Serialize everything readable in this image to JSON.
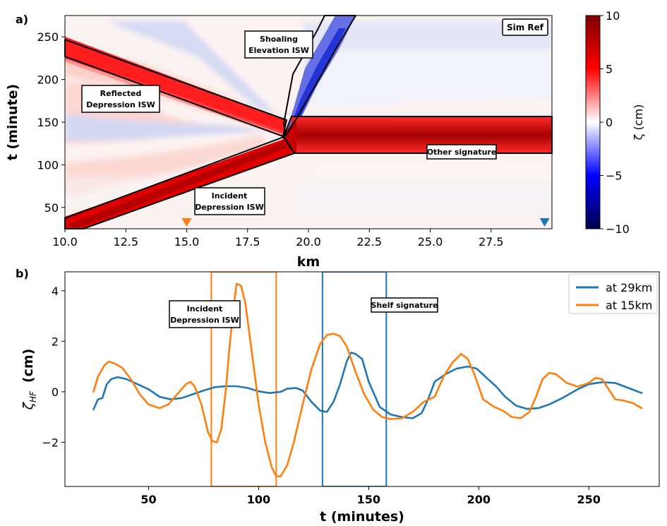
{
  "chart_data": [
    {
      "panel_label": "a)",
      "type": "heatmap",
      "xlabel": "km",
      "ylabel": "t (minute)",
      "xlim": [
        10.0,
        30.0
      ],
      "ylim": [
        25,
        275
      ],
      "x_ticks": [
        10.0,
        12.5,
        15.0,
        17.5,
        20.0,
        22.5,
        25.0,
        27.5
      ],
      "x_tick_labels": [
        "10.0",
        "12.5",
        "15.0",
        "17.5",
        "20.0",
        "22.5",
        "25.0",
        "27.5"
      ],
      "y_ticks": [
        50,
        100,
        150,
        200,
        250
      ],
      "y_tick_labels": [
        "50",
        "100",
        "150",
        "200",
        "250"
      ],
      "colorbar": {
        "label": "ζ (cm)",
        "range": [
          -10,
          10
        ],
        "ticks": [
          10,
          5,
          0,
          -5,
          -10
        ],
        "tick_labels": [
          "10",
          "5",
          "0",
          "−5",
          "−10"
        ],
        "colormap": "seismic",
        "colors": {
          "max": "#7f0000",
          "high": "#ff0000",
          "zero": "#ffffff",
          "low": "#0000ff",
          "min": "#00004c"
        }
      },
      "box_label": "Sim Ref",
      "markers": [
        {
          "x": 15.0,
          "color": "#ff7f0e",
          "shape": "triangle-down"
        },
        {
          "x": 29.7,
          "color": "#1f77b4",
          "shape": "triangle-down"
        }
      ],
      "regions": [
        {
          "label_lines": [
            "Incident",
            "Depression ISW"
          ],
          "polygon": [
            [
              10.0,
              40
            ],
            [
              10.0,
              25
            ],
            [
              10.8,
              25
            ],
            [
              19.3,
              114
            ],
            [
              19.1,
              132
            ]
          ]
        },
        {
          "label_lines": [
            "Reflected",
            "Depression ISW"
          ],
          "polygon": [
            [
              10.0,
              246
            ],
            [
              10.0,
              225
            ],
            [
              18.9,
              133
            ],
            [
              19.0,
              156
            ]
          ]
        },
        {
          "label_lines": [
            "Shoaling",
            "Elevation ISW"
          ],
          "polygon": [
            [
              19.0,
              152
            ],
            [
              19.6,
              225
            ],
            [
              20.4,
              272
            ],
            [
              22.0,
              272
            ],
            [
              19.2,
              135
            ]
          ]
        },
        {
          "label_lines": [
            "Other signature"
          ],
          "polygon": [
            [
              19.0,
              132
            ],
            [
              19.5,
              156
            ],
            [
              30.0,
              156
            ],
            [
              30.0,
              114
            ],
            [
              19.3,
              114
            ]
          ]
        }
      ]
    },
    {
      "panel_label": "b)",
      "type": "line",
      "xlabel": "t (minutes)",
      "ylabel": "ζ",
      "ylabel_subscript": "HF",
      "ylabel_unit": "(cm)",
      "xlim": [
        12,
        282
      ],
      "ylim": [
        -3.75,
        4.75
      ],
      "x_ticks": [
        50,
        100,
        150,
        200,
        250
      ],
      "x_tick_labels": [
        "50",
        "100",
        "150",
        "200",
        "250"
      ],
      "y_ticks": [
        4,
        2,
        0,
        -2
      ],
      "y_tick_labels": [
        "4",
        "2",
        "0",
        "−2"
      ],
      "legend_position": "top-right",
      "series": [
        {
          "name": "at 29km",
          "color": "#1f77b4",
          "points": [
            [
              25,
              -0.7
            ],
            [
              27,
              -0.3
            ],
            [
              29,
              -0.25
            ],
            [
              31,
              0.3
            ],
            [
              33,
              0.5
            ],
            [
              36,
              0.58
            ],
            [
              40,
              0.5
            ],
            [
              45,
              0.3
            ],
            [
              50,
              0.1
            ],
            [
              55,
              -0.2
            ],
            [
              60,
              -0.3
            ],
            [
              65,
              -0.25
            ],
            [
              70,
              -0.1
            ],
            [
              75,
              0.05
            ],
            [
              80,
              0.18
            ],
            [
              85,
              0.22
            ],
            [
              90,
              0.22
            ],
            [
              95,
              0.15
            ],
            [
              100,
              0.02
            ],
            [
              105,
              -0.05
            ],
            [
              110,
              0.0
            ],
            [
              113,
              0.12
            ],
            [
              117,
              0.15
            ],
            [
              120,
              0.05
            ],
            [
              124,
              -0.4
            ],
            [
              128,
              -0.75
            ],
            [
              131,
              -0.8
            ],
            [
              134,
              -0.4
            ],
            [
              137,
              0.3
            ],
            [
              140,
              1.2
            ],
            [
              142,
              1.55
            ],
            [
              144,
              1.5
            ],
            [
              147,
              1.3
            ],
            [
              150,
              0.4
            ],
            [
              155,
              -0.6
            ],
            [
              160,
              -0.9
            ],
            [
              165,
              -1.0
            ],
            [
              170,
              -1.05
            ],
            [
              174,
              -0.85
            ],
            [
              177,
              -0.3
            ],
            [
              180,
              0.4
            ],
            [
              185,
              0.7
            ],
            [
              190,
              0.92
            ],
            [
              195,
              1.0
            ],
            [
              199,
              0.92
            ],
            [
              203,
              0.6
            ],
            [
              208,
              0.2
            ],
            [
              212,
              -0.2
            ],
            [
              217,
              -0.55
            ],
            [
              222,
              -0.68
            ],
            [
              227,
              -0.65
            ],
            [
              232,
              -0.5
            ],
            [
              238,
              -0.25
            ],
            [
              245,
              0.1
            ],
            [
              250,
              0.3
            ],
            [
              256,
              0.38
            ],
            [
              262,
              0.35
            ],
            [
              268,
              0.15
            ],
            [
              274,
              -0.05
            ]
          ]
        },
        {
          "name": "at 15km",
          "color": "#ff7f0e",
          "points": [
            [
              25,
              0.0
            ],
            [
              27,
              0.6
            ],
            [
              30,
              1.05
            ],
            [
              32,
              1.2
            ],
            [
              35,
              1.1
            ],
            [
              38,
              0.95
            ],
            [
              42,
              0.5
            ],
            [
              46,
              -0.1
            ],
            [
              50,
              -0.5
            ],
            [
              55,
              -0.65
            ],
            [
              59,
              -0.5
            ],
            [
              63,
              -0.1
            ],
            [
              67,
              0.3
            ],
            [
              69,
              0.4
            ],
            [
              71,
              0.2
            ],
            [
              74,
              -0.5
            ],
            [
              77,
              -1.6
            ],
            [
              79,
              -1.95
            ],
            [
              81,
              -2.0
            ],
            [
              83,
              -1.5
            ],
            [
              85,
              0.0
            ],
            [
              87,
              2.0
            ],
            [
              89,
              3.6
            ],
            [
              90,
              4.28
            ],
            [
              92,
              4.2
            ],
            [
              94,
              3.5
            ],
            [
              97,
              1.5
            ],
            [
              100,
              -0.5
            ],
            [
              103,
              -2.0
            ],
            [
              106,
              -3.0
            ],
            [
              108,
              -3.35
            ],
            [
              110,
              -3.35
            ],
            [
              113,
              -2.9
            ],
            [
              116,
              -2.0
            ],
            [
              120,
              -0.5
            ],
            [
              124,
              0.9
            ],
            [
              128,
              1.9
            ],
            [
              131,
              2.25
            ],
            [
              134,
              2.3
            ],
            [
              137,
              2.2
            ],
            [
              140,
              1.8
            ],
            [
              144,
              0.8
            ],
            [
              148,
              -0.1
            ],
            [
              152,
              -0.7
            ],
            [
              156,
              -1.0
            ],
            [
              160,
              -1.08
            ],
            [
              165,
              -1.05
            ],
            [
              170,
              -0.8
            ],
            [
              175,
              -0.4
            ],
            [
              180,
              -0.2
            ],
            [
              184,
              0.6
            ],
            [
              188,
              1.15
            ],
            [
              192,
              1.5
            ],
            [
              195,
              1.3
            ],
            [
              198,
              0.7
            ],
            [
              202,
              -0.3
            ],
            [
              207,
              -0.6
            ],
            [
              211,
              -0.75
            ],
            [
              215,
              -1.0
            ],
            [
              219,
              -1.05
            ],
            [
              223,
              -0.8
            ],
            [
              226,
              -0.2
            ],
            [
              229,
              0.5
            ],
            [
              232,
              0.75
            ],
            [
              235,
              0.7
            ],
            [
              240,
              0.35
            ],
            [
              245,
              0.2
            ],
            [
              250,
              0.35
            ],
            [
              253,
              0.55
            ],
            [
              256,
              0.5
            ],
            [
              259,
              0.1
            ],
            [
              262,
              -0.3
            ],
            [
              266,
              -0.35
            ],
            [
              270,
              -0.45
            ],
            [
              274,
              -0.65
            ]
          ]
        }
      ],
      "boxes": [
        {
          "x": [
            78.5,
            108
          ],
          "color": "#ff7f0e"
        },
        {
          "x": [
            129,
            158
          ],
          "color": "#1f77b4"
        }
      ],
      "annotations": [
        {
          "label_lines": [
            "Incident",
            "Depression ISW"
          ],
          "x": 79,
          "y": 3.15
        },
        {
          "label_lines": [
            "Shelf signature"
          ],
          "x": 164,
          "y": 3.4
        }
      ]
    }
  ]
}
